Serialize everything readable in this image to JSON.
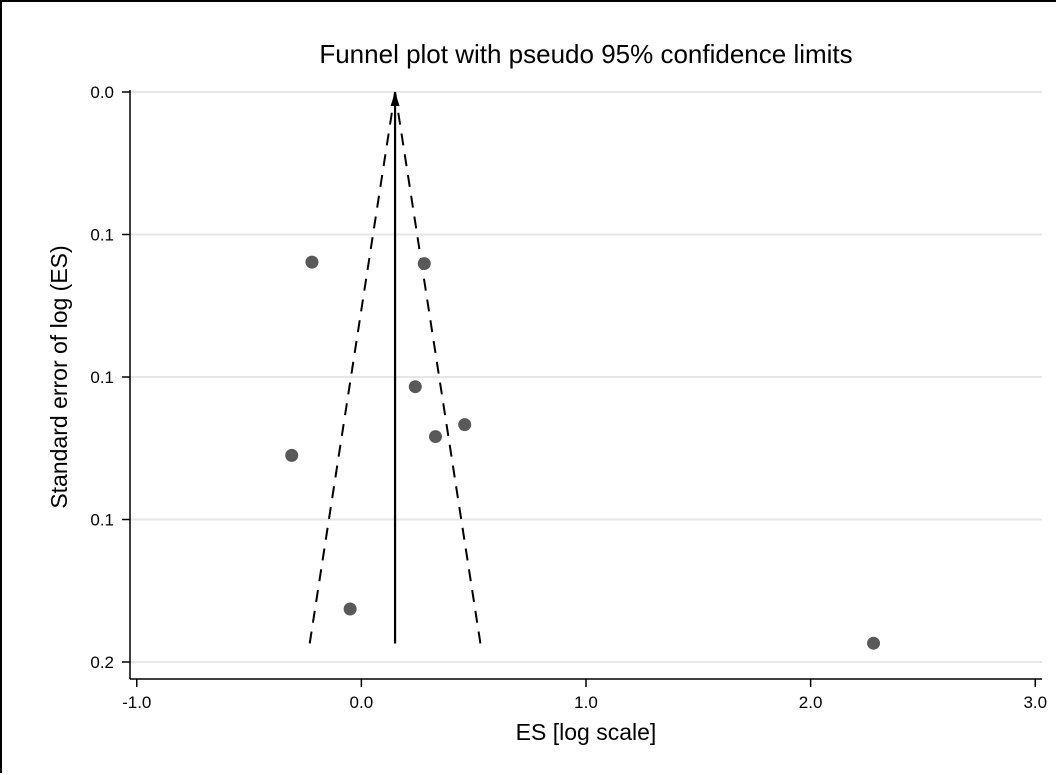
{
  "chart_data": {
    "type": "scatter",
    "title": "Funnel plot with pseudo 95% confidence limits",
    "xlabel": "ES [log scale]",
    "ylabel": "Standard error of log (ES)",
    "xlim": [
      -1.03,
      3.03
    ],
    "ylim": [
      0.0,
      0.2
    ],
    "y_inverted": true,
    "grid": "horizontal",
    "x_ticks": [
      {
        "value": -1.0,
        "label": "-1.0"
      },
      {
        "value": 0.0,
        "label": "0.0"
      },
      {
        "value": 1.0,
        "label": "1.0"
      },
      {
        "value": 2.0,
        "label": "2.0"
      },
      {
        "value": 3.0,
        "label": "3.0"
      }
    ],
    "y_ticks": [
      {
        "value": 0.0,
        "label": "0.0"
      },
      {
        "value": 0.05,
        "label": "0.1"
      },
      {
        "value": 0.1,
        "label": "0.1"
      },
      {
        "value": 0.15,
        "label": "0.1"
      },
      {
        "value": 0.2,
        "label": "0.2"
      }
    ],
    "points": [
      {
        "x": -0.22,
        "y": 0.0597
      },
      {
        "x": 0.28,
        "y": 0.0602
      },
      {
        "x": 0.24,
        "y": 0.1034
      },
      {
        "x": 0.46,
        "y": 0.1167
      },
      {
        "x": 0.33,
        "y": 0.1209
      },
      {
        "x": -0.31,
        "y": 0.1275
      },
      {
        "x": -0.05,
        "y": 0.1814
      },
      {
        "x": 2.28,
        "y": 0.1934
      }
    ],
    "pooled_estimate": {
      "x": 0.15,
      "y_top": 0.0,
      "y_bottom": 0.1935
    },
    "confidence_limits": {
      "apex": {
        "x": 0.15,
        "y": 0.0
      },
      "left_end": {
        "x": -0.23,
        "y": 0.1935
      },
      "right_end": {
        "x": 0.53,
        "y": 0.1935
      }
    }
  }
}
